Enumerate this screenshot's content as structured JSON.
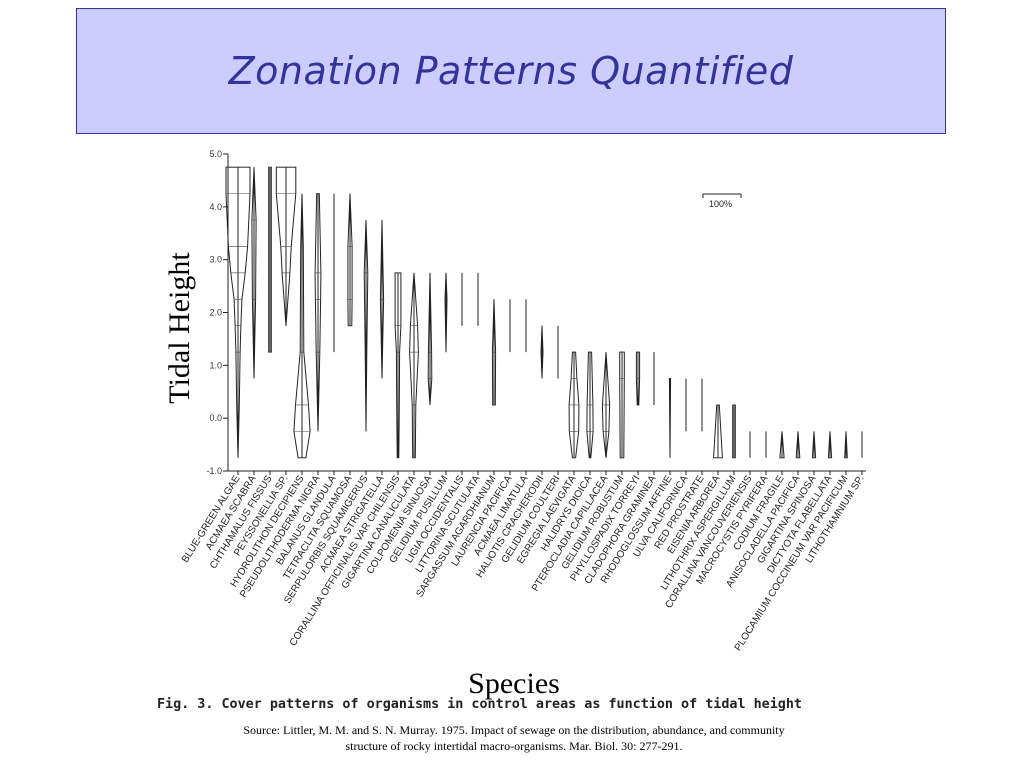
{
  "slide_title": "Zonation Patterns Quantified",
  "caption": "Fig. 3. Cover patterns of organisms in control areas as function of tidal height",
  "source_line1": "Source: Littler, M. M. and S. N. Murray. 1975. Impact of sewage on the distribution, abundance, and community",
  "source_line2": "structure of rocky intertidal macro-organisms.  Mar. Biol. 30: 277-291.",
  "scale_label": "100%",
  "chart_data": {
    "type": "bar",
    "xlabel": "Species",
    "ylabel": "Tidal Height",
    "ylim": [
      -1.0,
      5.0
    ],
    "yticks": [
      "5.0",
      "4.0",
      "3.0",
      "2.0",
      "1.0",
      "0.0",
      "-1.0"
    ],
    "ytick_values": [
      5.0,
      4.0,
      3.0,
      2.0,
      1.0,
      0.0,
      -1.0
    ],
    "categories": [
      "BLUE-GREEN ALGAE",
      "ACMAEA SCABRA",
      "CHTHAMALUS FISSUS",
      "PEYSSONELLIA SP.",
      "HYDROLITHON DECIPIENS",
      "PSEUDOLITHODERMA NIGRA",
      "BALANUS GLANDULA",
      "TETRACLITA SQUAMOSA",
      "SERPULORBIS SQUAMIGERUS",
      "ACMAEA STRIGATELLA",
      "CORALLINA OFFICINALIS VAR CHILENSIS",
      "GIGARTINA CANALICULATA",
      "COLPOMENIA SINUOSA",
      "GELIDIUM PUSILLUM",
      "LIGIA OCCIDENTALIS",
      "LITTORINA SCUTULATA",
      "SARGASSUM AGARDHIANUM",
      "LAURENCIA PACIFICA",
      "ACMAEA LIMATULA",
      "HALIOTIS CRACHERODII",
      "GELIDIUM COULTERI",
      "EGREGIA LAEVIGATA",
      "HALIDRYS DIOICA",
      "PTEROCLADIA CAPILLACEA",
      "GELIDIUM ROBUSTUM",
      "PHYLLOSPADIX TORREYI",
      "CLADOPHORA GRAMINEA",
      "RHODOGLOSSUM AFFINE",
      "ULVA CALIFORNICA",
      "RED PROSTRATE",
      "EISENIA ARBOREA",
      "LITHOTHRIX ASPERGILLUM",
      "CORALLINA VANCOUVERIENSIS",
      "MACROCYSTIS PYRIFERA",
      "CODIUM FRAGILE",
      "ANISOCLADELLA PACIFICA",
      "GIGARTINA SPINOSA",
      "DICTYOTA FLABELLATA",
      "PLOCAMIUM COCCINEUM VAR PACIFICUM",
      "LITHOTHAMNIUM SP."
    ],
    "series": [
      {
        "range": [
          -0.75,
          4.75
        ],
        "profile": [
          [
            4.75,
            0.92
          ],
          [
            4.25,
            0.92
          ],
          [
            3.25,
            0.74
          ],
          [
            2.75,
            0.55
          ],
          [
            2.25,
            0.3
          ],
          [
            1.75,
            0.22
          ],
          [
            1.25,
            0.16
          ],
          [
            0.25,
            0.1
          ],
          [
            -0.75,
            0.0
          ]
        ]
      },
      {
        "range": [
          0.75,
          4.75
        ],
        "profile": [
          [
            4.75,
            0.0
          ],
          [
            3.75,
            0.16
          ],
          [
            2.25,
            0.12
          ],
          [
            0.75,
            0.0
          ]
        ]
      },
      {
        "range": [
          1.25,
          4.75
        ],
        "profile": [
          [
            4.75,
            0.1
          ],
          [
            1.25,
            0.1
          ]
        ]
      },
      {
        "range": [
          1.75,
          4.75
        ],
        "profile": [
          [
            4.75,
            0.75
          ],
          [
            4.25,
            0.75
          ],
          [
            3.25,
            0.4
          ],
          [
            2.75,
            0.3
          ],
          [
            1.75,
            0.0
          ]
        ]
      },
      {
        "range": [
          -0.75,
          4.25
        ],
        "profile": [
          [
            4.25,
            0.0
          ],
          [
            3.25,
            0.1
          ],
          [
            1.25,
            0.14
          ],
          [
            0.25,
            0.5
          ],
          [
            -0.25,
            0.62
          ],
          [
            -0.75,
            0.3
          ]
        ]
      },
      {
        "range": [
          -0.25,
          4.25
        ],
        "profile": [
          [
            4.25,
            0.1
          ],
          [
            2.75,
            0.22
          ],
          [
            2.25,
            0.2
          ],
          [
            1.25,
            0.14
          ],
          [
            -0.25,
            0.0
          ]
        ]
      },
      {
        "range": [
          1.25,
          4.25
        ],
        "profile": [
          [
            4.25,
            0.0
          ],
          [
            1.25,
            0.0
          ]
        ]
      },
      {
        "range": [
          1.75,
          4.25
        ],
        "profile": [
          [
            4.25,
            0.0
          ],
          [
            3.25,
            0.16
          ],
          [
            2.25,
            0.16
          ],
          [
            1.75,
            0.14
          ]
        ]
      },
      {
        "range": [
          -0.25,
          3.75
        ],
        "profile": [
          [
            3.75,
            0.0
          ],
          [
            2.75,
            0.14
          ],
          [
            1.25,
            0.06
          ],
          [
            -0.25,
            0.0
          ]
        ]
      },
      {
        "range": [
          0.75,
          3.75
        ],
        "profile": [
          [
            3.75,
            0.0
          ],
          [
            2.25,
            0.12
          ],
          [
            0.75,
            0.0
          ]
        ]
      },
      {
        "range": [
          -0.75,
          2.75
        ],
        "profile": [
          [
            2.75,
            0.22
          ],
          [
            1.75,
            0.22
          ],
          [
            1.25,
            0.12
          ],
          [
            0.25,
            0.1
          ],
          [
            -0.75,
            0.06
          ]
        ]
      },
      {
        "range": [
          -0.75,
          2.75
        ],
        "profile": [
          [
            2.75,
            0.0
          ],
          [
            1.75,
            0.28
          ],
          [
            1.25,
            0.34
          ],
          [
            0.25,
            0.14
          ],
          [
            -0.75,
            0.1
          ]
        ]
      },
      {
        "range": [
          0.25,
          2.75
        ],
        "profile": [
          [
            2.75,
            0.0
          ],
          [
            1.25,
            0.12
          ],
          [
            0.75,
            0.14
          ],
          [
            0.25,
            0.0
          ]
        ]
      },
      {
        "range": [
          1.25,
          2.75
        ],
        "profile": [
          [
            2.75,
            0.0
          ],
          [
            2.25,
            0.08
          ],
          [
            1.25,
            0.0
          ]
        ]
      },
      {
        "range": [
          1.75,
          2.75
        ],
        "profile": [
          [
            2.75,
            0.0
          ],
          [
            1.75,
            0.0
          ]
        ]
      },
      {
        "range": [
          1.75,
          2.75
        ],
        "profile": [
          [
            2.75,
            0.0
          ],
          [
            1.75,
            0.0
          ]
        ]
      },
      {
        "range": [
          0.25,
          2.25
        ],
        "profile": [
          [
            2.25,
            0.0
          ],
          [
            1.25,
            0.12
          ],
          [
            0.25,
            0.1
          ]
        ]
      },
      {
        "range": [
          1.25,
          2.25
        ],
        "profile": [
          [
            2.25,
            0.0
          ],
          [
            1.25,
            0.0
          ]
        ]
      },
      {
        "range": [
          1.25,
          2.25
        ],
        "profile": [
          [
            2.25,
            0.0
          ],
          [
            1.25,
            0.0
          ]
        ]
      },
      {
        "range": [
          0.75,
          1.75
        ],
        "profile": [
          [
            1.75,
            0.0
          ],
          [
            1.25,
            0.08
          ],
          [
            0.75,
            0.0
          ]
        ]
      },
      {
        "range": [
          0.75,
          1.75
        ],
        "profile": [
          [
            1.75,
            0.0
          ],
          [
            0.75,
            0.0
          ]
        ]
      },
      {
        "range": [
          -0.75,
          1.25
        ],
        "profile": [
          [
            1.25,
            0.12
          ],
          [
            0.75,
            0.22
          ],
          [
            0.25,
            0.38
          ],
          [
            -0.25,
            0.36
          ],
          [
            -0.75,
            0.12
          ]
        ]
      },
      {
        "range": [
          -0.75,
          1.25
        ],
        "profile": [
          [
            1.25,
            0.12
          ],
          [
            0.25,
            0.22
          ],
          [
            -0.25,
            0.24
          ],
          [
            -0.75,
            0.06
          ]
        ]
      },
      {
        "range": [
          -0.75,
          1.25
        ],
        "profile": [
          [
            1.25,
            0.0
          ],
          [
            0.25,
            0.28
          ],
          [
            -0.25,
            0.22
          ],
          [
            -0.75,
            0.0
          ]
        ]
      },
      {
        "range": [
          -0.75,
          1.25
        ],
        "profile": [
          [
            1.25,
            0.18
          ],
          [
            0.75,
            0.18
          ],
          [
            -0.75,
            0.14
          ]
        ]
      },
      {
        "range": [
          0.25,
          1.25
        ],
        "profile": [
          [
            1.25,
            0.12
          ],
          [
            0.75,
            0.12
          ],
          [
            0.25,
            0.06
          ]
        ]
      },
      {
        "range": [
          0.25,
          1.25
        ],
        "profile": [
          [
            1.25,
            0.0
          ],
          [
            0.25,
            0.0
          ]
        ]
      },
      {
        "range": [
          -0.75,
          0.75
        ],
        "profile": [
          [
            0.75,
            0.05
          ],
          [
            -0.75,
            0.0
          ]
        ]
      },
      {
        "range": [
          -0.25,
          0.75
        ],
        "profile": [
          [
            0.75,
            0.0
          ],
          [
            -0.25,
            0.0
          ]
        ]
      },
      {
        "range": [
          -0.25,
          0.75
        ],
        "profile": [
          [
            0.75,
            0.0
          ],
          [
            -0.25,
            0.0
          ]
        ]
      },
      {
        "range": [
          -0.75,
          0.25
        ],
        "profile": [
          [
            0.25,
            0.1
          ],
          [
            -0.75,
            0.34
          ]
        ]
      },
      {
        "range": [
          -0.75,
          0.25
        ],
        "profile": [
          [
            0.25,
            0.1
          ],
          [
            -0.75,
            0.1
          ]
        ]
      },
      {
        "range": [
          -0.75,
          -0.25
        ],
        "profile": [
          [
            -0.25,
            0.0
          ],
          [
            -0.75,
            0.0
          ]
        ]
      },
      {
        "range": [
          -0.75,
          -0.25
        ],
        "profile": [
          [
            -0.25,
            0.0
          ],
          [
            -0.75,
            0.0
          ]
        ]
      },
      {
        "range": [
          -0.75,
          -0.25
        ],
        "profile": [
          [
            -0.25,
            0.0
          ],
          [
            -0.75,
            0.16
          ]
        ]
      },
      {
        "range": [
          -0.75,
          -0.25
        ],
        "profile": [
          [
            -0.25,
            0.0
          ],
          [
            -0.75,
            0.14
          ]
        ]
      },
      {
        "range": [
          -0.75,
          -0.25
        ],
        "profile": [
          [
            -0.25,
            0.0
          ],
          [
            -0.75,
            0.12
          ]
        ]
      },
      {
        "range": [
          -0.75,
          -0.25
        ],
        "profile": [
          [
            -0.25,
            0.0
          ],
          [
            -0.75,
            0.12
          ]
        ]
      },
      {
        "range": [
          -0.75,
          -0.25
        ],
        "profile": [
          [
            -0.25,
            0.0
          ],
          [
            -0.75,
            0.1
          ]
        ]
      },
      {
        "range": [
          -0.75,
          -0.25
        ],
        "profile": [
          [
            -0.25,
            0.0
          ],
          [
            -0.75,
            0.0
          ]
        ]
      }
    ]
  }
}
